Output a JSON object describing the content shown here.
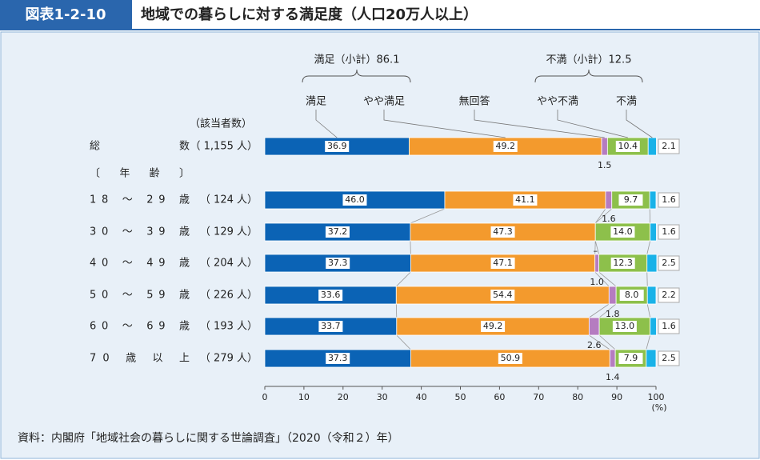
{
  "header": {
    "figure_no": "図表1-2-10",
    "title": "地域での暮らしに対する満足度（人口20万人以上）"
  },
  "chart_data": {
    "type": "stacked-bar-horizontal",
    "annotations": [
      "満足（小計）86.1",
      "不満（小計）12.5",
      "（該当者数）",
      "〔年齢〕"
    ],
    "categories": [
      "総数",
      "18 ～ 29 歳",
      "30 ～ 39 歳",
      "40 ～ 49 歳",
      "50 ～ 59 歳",
      "60 ～ 69 歳",
      "70 歳 以 上"
    ],
    "respondents": [
      "（ 1,155 人）",
      "（ 124 人）",
      "（ 129 人）",
      "（ 204 人）",
      "（ 226 人）",
      "（ 193 人）",
      "（ 279 人）"
    ],
    "series": [
      {
        "name": "満足",
        "color": "#0b63b5",
        "values": [
          36.9,
          46.0,
          37.2,
          37.3,
          33.6,
          33.7,
          37.3
        ],
        "value_labels": [
          "36.9",
          "46.0",
          "37.2",
          "37.3",
          "33.6",
          "33.7",
          "37.3"
        ]
      },
      {
        "name": "やや満足",
        "color": "#f39a2d",
        "values": [
          49.2,
          41.1,
          47.3,
          47.1,
          54.4,
          49.2,
          50.9
        ],
        "value_labels": [
          "49.2",
          "41.1",
          "47.3",
          "47.1",
          "54.4",
          "49.2",
          "50.9"
        ]
      },
      {
        "name": "無回答",
        "color": "#b57cc0",
        "values": [
          1.5,
          1.6,
          0,
          1.0,
          1.8,
          2.6,
          1.4
        ],
        "value_labels": [
          "1.5",
          "1.6",
          "–",
          "1.0",
          "1.8",
          "2.6",
          "1.4"
        ]
      },
      {
        "name": "やや不満",
        "color": "#8dc04b",
        "values": [
          10.4,
          9.7,
          14.0,
          12.3,
          8.0,
          13.0,
          7.9
        ],
        "value_labels": [
          "10.4",
          "9.7",
          "14.0",
          "12.3",
          "8.0",
          "13.0",
          "7.9"
        ]
      },
      {
        "name": "不満",
        "color": "#19b2e8",
        "values": [
          2.1,
          1.6,
          1.6,
          2.5,
          2.2,
          1.6,
          2.5
        ],
        "value_labels": [
          "2.1",
          "1.6",
          "1.6",
          "2.5",
          "2.2",
          "1.6",
          "2.5"
        ]
      }
    ],
    "xlim": [
      0,
      100
    ],
    "xticks": [
      0,
      10,
      20,
      30,
      40,
      50,
      60,
      70,
      80,
      90,
      100
    ],
    "x_unit": "(%)"
  },
  "source": "資料：内閣府「地域社会の暮らしに関する世論調査」（2020（令和２）年）"
}
